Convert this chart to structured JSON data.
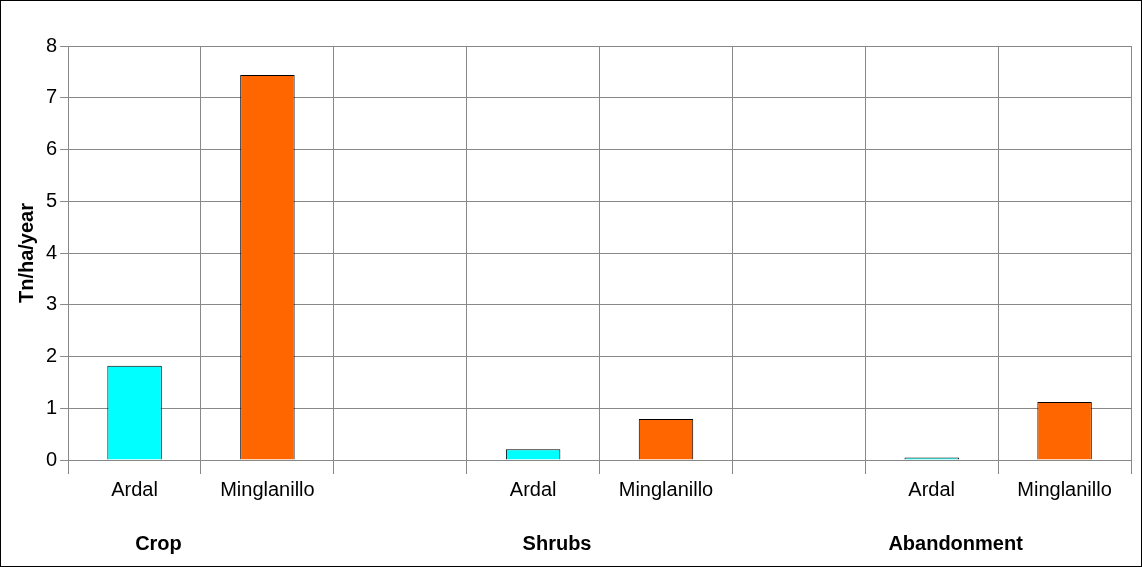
{
  "chart_data": {
    "type": "bar",
    "ylabel": "Tn/ha/year",
    "categories": [
      "Ardal",
      "Minglanillo",
      null,
      "Ardal",
      "Minglanillo",
      null,
      "Ardal",
      "Minglanillo"
    ],
    "values": [
      1.82,
      7.44,
      null,
      0.21,
      0.79,
      null,
      0.05,
      1.12
    ],
    "colors": [
      "#00ffff",
      "#ff6600",
      null,
      "#00ffff",
      "#ff6600",
      null,
      "#00ffff",
      "#ff6600"
    ],
    "ylim": [
      0,
      8
    ],
    "yticks": [
      0,
      1,
      2,
      3,
      4,
      5,
      6,
      7,
      8
    ],
    "grid": true,
    "legend": false,
    "annotations": [
      "Crop",
      "Shrubs",
      "Abandonment"
    ]
  }
}
